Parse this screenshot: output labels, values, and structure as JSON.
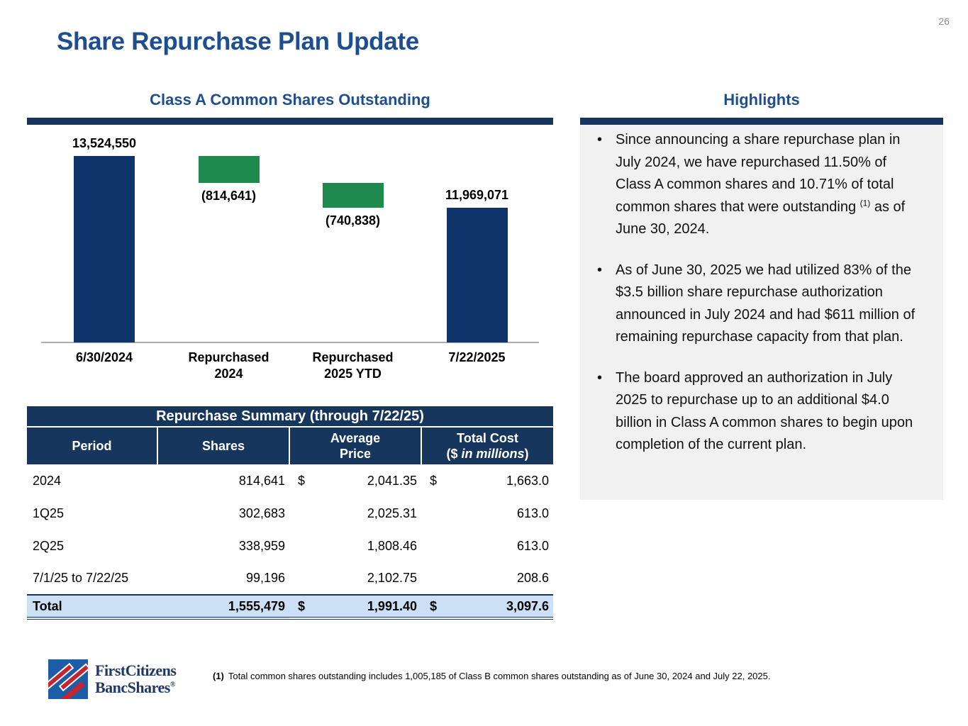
{
  "page_number": "26",
  "title": "Share Repurchase Plan Update",
  "colors": {
    "accent_navy": "#17365D",
    "title_blue": "#1F4E8F",
    "bar_navy": "#0E346B",
    "bar_green": "#1F8A4D",
    "total_row_bg": "#CCE0F5",
    "highlights_bg": "#F1F1F1",
    "logo_navy": "#1F3864",
    "logo_red": "#C4252F",
    "logo_blue": "#1D5CA6"
  },
  "chart_data": {
    "type": "bar",
    "subtype": "waterfall",
    "title": "Class A Common Shares Outstanding",
    "categories": [
      "6/30/2024",
      "Repurchased 2024",
      "Repurchased 2025 YTD",
      "7/22/2025"
    ],
    "values": [
      13524550,
      -814641,
      -740838,
      11969071
    ],
    "ylim": [
      7935000,
      13524550
    ],
    "grid": false,
    "colors": {
      "total": "#0E346B",
      "decrease": "#1F8A4D"
    },
    "bars": [
      {
        "kind": "total",
        "x_label_lines": [
          "6/30/2024"
        ],
        "value": 13524550,
        "value_label": "13,524,550",
        "segment_top": 13524550,
        "segment_bottom": 7935000,
        "label_position": "above"
      },
      {
        "kind": "decrease",
        "x_label_lines": [
          "Repurchased",
          "2024"
        ],
        "value": -814641,
        "value_label": "(814,641)",
        "segment_top": 13524550,
        "segment_bottom": 12709909,
        "label_position": "below"
      },
      {
        "kind": "decrease",
        "x_label_lines": [
          "Repurchased",
          "2025 YTD"
        ],
        "value": -740838,
        "value_label": "(740,838)",
        "segment_top": 12709909,
        "segment_bottom": 11969071,
        "label_position": "below"
      },
      {
        "kind": "total",
        "x_label_lines": [
          "7/22/2025"
        ],
        "value": 11969071,
        "value_label": "11,969,071",
        "segment_top": 11969071,
        "segment_bottom": 7935000,
        "label_position": "above"
      }
    ]
  },
  "table": {
    "title": "Repurchase Summary (through 7/22/25)",
    "columns": [
      {
        "lines": [
          "Period"
        ]
      },
      {
        "lines": [
          "Shares"
        ]
      },
      {
        "lines": [
          "Average",
          "Price"
        ]
      },
      {
        "lines": [
          "Total Cost"
        ],
        "line2_prefix": "($",
        "line2_italic": "in millions",
        "line2_suffix": ")"
      }
    ],
    "rows": [
      {
        "period": "2024",
        "shares": "814,641",
        "avg_dollar": "$",
        "avg_price": "2,041.35",
        "cost_dollar": "$",
        "total_cost": "1,663.0"
      },
      {
        "period": "1Q25",
        "shares": "302,683",
        "avg_dollar": "",
        "avg_price": "2,025.31",
        "cost_dollar": "",
        "total_cost": "613.0"
      },
      {
        "period": "2Q25",
        "shares": "338,959",
        "avg_dollar": "",
        "avg_price": "1,808.46",
        "cost_dollar": "",
        "total_cost": "613.0"
      },
      {
        "period": "7/1/25 to 7/22/25",
        "shares": "99,196",
        "avg_dollar": "",
        "avg_price": "2,102.75",
        "cost_dollar": "",
        "total_cost": "208.6"
      }
    ],
    "total_row": {
      "period": "Total",
      "shares": "1,555,479",
      "avg_dollar": "$",
      "avg_price": "1,991.40",
      "cost_dollar": "$",
      "total_cost": "3,097.6"
    }
  },
  "highlights": {
    "title": "Highlights",
    "bullet_char": "•",
    "bullets": [
      {
        "text": "Since announcing a share repurchase plan in July 2024, we have repurchased 11.50% of Class A common shares and 10.71% of total common shares that were outstanding",
        "sup": "(1)",
        "text_after": "as of June 30, 2024."
      },
      {
        "text": "As of June 30, 2025 we had utilized 83% of the $3.5 billion share repurchase authorization announced in July 2024 and had $611 million of remaining repurchase capacity from that plan.",
        "sup": "",
        "text_after": ""
      },
      {
        "text": "The board approved an authorization in July 2025 to repurchase up to an additional $4.0 billion in Class A common shares to begin upon completion of the current plan.",
        "sup": "",
        "text_after": ""
      }
    ]
  },
  "footer": {
    "logo": {
      "line1": "FirstCitizens",
      "line2": "BancShares",
      "reg": "®"
    },
    "footnote_marker": "(1)",
    "footnote_text": "Total common shares outstanding includes 1,005,185 of Class B common shares outstanding as of June 30, 2024 and July 22, 2025."
  }
}
